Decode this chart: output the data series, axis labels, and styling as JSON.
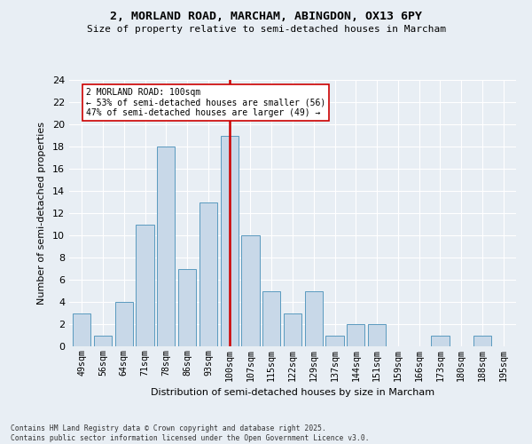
{
  "title": "2, MORLAND ROAD, MARCHAM, ABINGDON, OX13 6PY",
  "subtitle": "Size of property relative to semi-detached houses in Marcham",
  "xlabel": "Distribution of semi-detached houses by size in Marcham",
  "ylabel": "Number of semi-detached properties",
  "categories": [
    "49sqm",
    "56sqm",
    "64sqm",
    "71sqm",
    "78sqm",
    "86sqm",
    "93sqm",
    "100sqm",
    "107sqm",
    "115sqm",
    "122sqm",
    "129sqm",
    "137sqm",
    "144sqm",
    "151sqm",
    "159sqm",
    "166sqm",
    "173sqm",
    "180sqm",
    "188sqm",
    "195sqm"
  ],
  "values": [
    3,
    1,
    4,
    11,
    18,
    7,
    13,
    19,
    10,
    5,
    3,
    5,
    1,
    2,
    2,
    0,
    0,
    1,
    0,
    1,
    0
  ],
  "highlight_index": 7,
  "highlight_label": "2 MORLAND ROAD: 100sqm",
  "annotation_line1": "← 53% of semi-detached houses are smaller (56)",
  "annotation_line2": "47% of semi-detached houses are larger (49) →",
  "bar_color": "#c8d8e8",
  "bar_edge_color": "#5a9abf",
  "highlight_line_color": "#cc0000",
  "annotation_box_color": "#ffffff",
  "annotation_box_edge": "#cc0000",
  "ylim": [
    0,
    24
  ],
  "yticks": [
    0,
    2,
    4,
    6,
    8,
    10,
    12,
    14,
    16,
    18,
    20,
    22,
    24
  ],
  "footnote_line1": "Contains HM Land Registry data © Crown copyright and database right 2025.",
  "footnote_line2": "Contains public sector information licensed under the Open Government Licence v3.0.",
  "bg_color": "#e8eef4"
}
